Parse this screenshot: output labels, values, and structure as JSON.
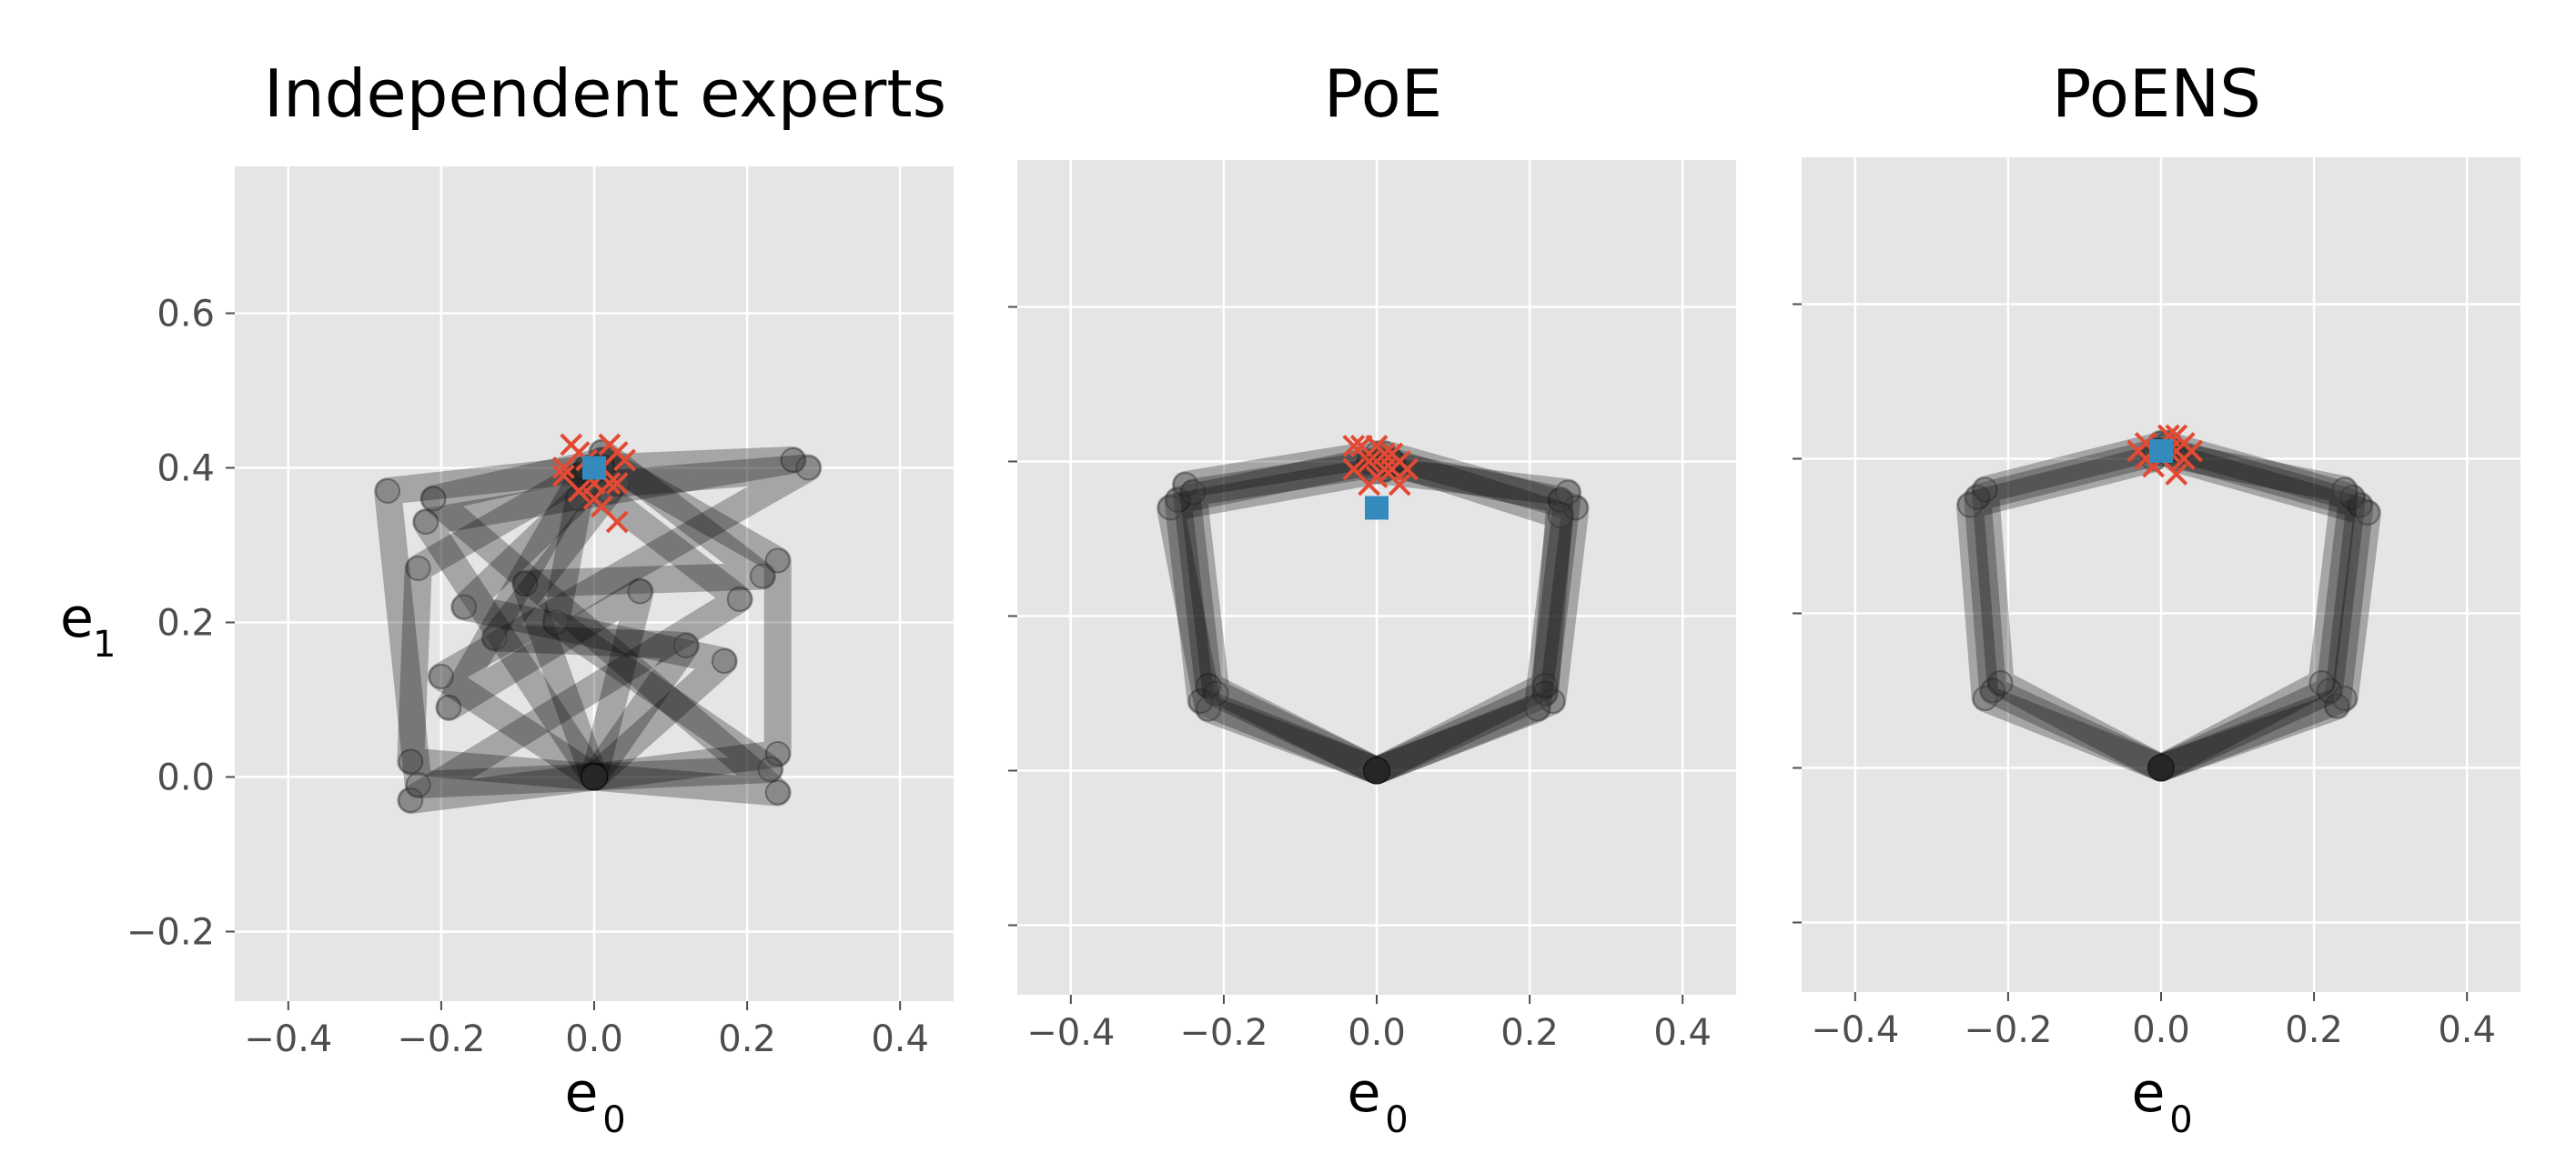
{
  "chart_data": [
    {
      "type": "scatter",
      "title": "Independent experts",
      "xlabel": "e",
      "xlabel_sub": "0",
      "ylabel": "e",
      "ylabel_sub": "1",
      "xlim": [
        -0.47,
        0.47
      ],
      "ylim": [
        -0.29,
        0.79
      ],
      "x_ticks": [
        -0.4,
        -0.2,
        0.0,
        0.2,
        0.4
      ],
      "x_tick_labels": [
        "−0.4",
        "−0.2",
        "0.0",
        "0.2",
        "0.4"
      ],
      "y_ticks": [
        -0.2,
        0.0,
        0.2,
        0.4,
        0.6
      ],
      "y_tick_labels": [
        "−0.2",
        "0.0",
        "0.2",
        "0.4",
        "0.6"
      ],
      "show_y_tick_labels": true,
      "grid": true,
      "arm_color": "#000000",
      "sample_color": "#e24a33",
      "target_color": "#348abd",
      "target": [
        0.0,
        0.4
      ],
      "end_effectors": [
        [
          -0.02,
          0.42
        ],
        [
          0.01,
          0.4
        ],
        [
          0.03,
          0.38
        ],
        [
          -0.04,
          0.39
        ],
        [
          0.02,
          0.43
        ],
        [
          0.0,
          0.36
        ],
        [
          0.03,
          0.33
        ],
        [
          -0.02,
          0.37
        ],
        [
          0.04,
          0.41
        ],
        [
          -0.03,
          0.43
        ],
        [
          0.01,
          0.35
        ],
        [
          0.02,
          0.38
        ],
        [
          -0.01,
          0.41
        ],
        [
          0.03,
          0.42
        ],
        [
          -0.04,
          0.4
        ],
        [
          0.0,
          0.38
        ]
      ],
      "arms": [
        [
          [
            0,
            0
          ],
          [
            -0.24,
            0.02
          ],
          [
            -0.23,
            0.27
          ],
          [
            0.0,
            0.4
          ]
        ],
        [
          [
            0,
            0
          ],
          [
            0.24,
            0.03
          ],
          [
            0.24,
            0.28
          ],
          [
            0.01,
            0.41
          ]
        ],
        [
          [
            0,
            0
          ],
          [
            -0.22,
            0.33
          ],
          [
            0.26,
            0.41
          ],
          [
            0.01,
            0.4
          ]
        ],
        [
          [
            0,
            0
          ],
          [
            0.17,
            0.15
          ],
          [
            -0.17,
            0.22
          ],
          [
            0.0,
            0.38
          ]
        ],
        [
          [
            0,
            0
          ],
          [
            -0.24,
            -0.03
          ],
          [
            0.19,
            0.23
          ],
          [
            -0.02,
            0.39
          ]
        ],
        [
          [
            0,
            0
          ],
          [
            0.24,
            -0.02
          ],
          [
            -0.21,
            0.36
          ],
          [
            0.02,
            0.41
          ]
        ],
        [
          [
            0,
            0
          ],
          [
            -0.09,
            0.25
          ],
          [
            0.22,
            0.26
          ],
          [
            0.01,
            0.42
          ]
        ],
        [
          [
            0,
            0
          ],
          [
            0.06,
            0.24
          ],
          [
            -0.19,
            0.09
          ],
          [
            -0.01,
            0.4
          ]
        ],
        [
          [
            0,
            0
          ],
          [
            -0.2,
            0.13
          ],
          [
            0.28,
            0.4
          ],
          [
            0.03,
            0.38
          ]
        ],
        [
          [
            0,
            0
          ],
          [
            0.23,
            0.01
          ],
          [
            -0.05,
            0.2
          ],
          [
            -0.02,
            0.36
          ]
        ],
        [
          [
            0,
            0
          ],
          [
            -0.23,
            -0.01
          ],
          [
            -0.27,
            0.37
          ],
          [
            0.01,
            0.4
          ]
        ],
        [
          [
            0,
            0
          ],
          [
            0.12,
            0.17
          ],
          [
            -0.13,
            0.18
          ],
          [
            0.02,
            0.37
          ]
        ]
      ]
    },
    {
      "type": "scatter",
      "title": "PoE",
      "xlabel": "e",
      "xlabel_sub": "0",
      "ylabel": "",
      "xlim": [
        -0.47,
        0.47
      ],
      "ylim": [
        -0.29,
        0.79
      ],
      "x_ticks": [
        -0.4,
        -0.2,
        0.0,
        0.2,
        0.4
      ],
      "x_tick_labels": [
        "−0.4",
        "−0.2",
        "0.0",
        "0.2",
        "0.4"
      ],
      "y_ticks": [
        -0.2,
        0.0,
        0.2,
        0.4,
        0.6
      ],
      "y_tick_labels": [
        "",
        "",
        "",
        "",
        ""
      ],
      "show_y_tick_labels": false,
      "grid": true,
      "arm_color": "#000000",
      "sample_color": "#e24a33",
      "target_color": "#348abd",
      "target": [
        0.0,
        0.34
      ],
      "end_effectors": [
        [
          -0.01,
          0.4
        ],
        [
          0.01,
          0.41
        ],
        [
          -0.03,
          0.39
        ],
        [
          0.03,
          0.4
        ],
        [
          0.0,
          0.38
        ],
        [
          -0.02,
          0.42
        ],
        [
          0.02,
          0.39
        ],
        [
          0.03,
          0.37
        ],
        [
          -0.03,
          0.42
        ],
        [
          0.01,
          0.39
        ],
        [
          0.0,
          0.42
        ],
        [
          0.02,
          0.41
        ],
        [
          0.04,
          0.39
        ],
        [
          -0.01,
          0.37
        ]
      ],
      "arms": [
        [
          [
            0,
            0
          ],
          [
            -0.23,
            0.09
          ],
          [
            -0.26,
            0.35
          ],
          [
            -0.01,
            0.4
          ]
        ],
        [
          [
            0,
            0
          ],
          [
            -0.22,
            0.11
          ],
          [
            -0.25,
            0.37
          ],
          [
            0.0,
            0.41
          ]
        ],
        [
          [
            0,
            0
          ],
          [
            -0.21,
            0.1
          ],
          [
            -0.24,
            0.36
          ],
          [
            0.02,
            0.4
          ]
        ],
        [
          [
            0,
            0
          ],
          [
            -0.22,
            0.08
          ],
          [
            -0.27,
            0.34
          ],
          [
            0.01,
            0.39
          ]
        ],
        [
          [
            0,
            0
          ],
          [
            0.22,
            0.1
          ],
          [
            0.24,
            0.35
          ],
          [
            0.0,
            0.4
          ]
        ],
        [
          [
            0,
            0
          ],
          [
            0.23,
            0.09
          ],
          [
            0.26,
            0.34
          ],
          [
            0.01,
            0.41
          ]
        ],
        [
          [
            0,
            0
          ],
          [
            0.22,
            0.11
          ],
          [
            0.25,
            0.36
          ],
          [
            -0.01,
            0.39
          ]
        ],
        [
          [
            0,
            0
          ],
          [
            0.21,
            0.08
          ],
          [
            0.24,
            0.33
          ],
          [
            0.02,
            0.4
          ]
        ]
      ]
    },
    {
      "type": "scatter",
      "title": "PoENS",
      "xlabel": "e",
      "xlabel_sub": "0",
      "ylabel": "",
      "xlim": [
        -0.47,
        0.47
      ],
      "ylim": [
        -0.29,
        0.79
      ],
      "x_ticks": [
        -0.4,
        -0.2,
        0.0,
        0.2,
        0.4
      ],
      "x_tick_labels": [
        "−0.4",
        "−0.2",
        "0.0",
        "0.2",
        "0.4"
      ],
      "y_ticks": [
        -0.2,
        0.0,
        0.2,
        0.4,
        0.6
      ],
      "y_tick_labels": [
        "",
        "",
        "",
        "",
        ""
      ],
      "show_y_tick_labels": false,
      "grid": true,
      "arm_color": "#000000",
      "sample_color": "#e24a33",
      "target_color": "#348abd",
      "target": [
        0.0,
        0.41
      ],
      "end_effectors": [
        [
          -0.02,
          0.42
        ],
        [
          0.01,
          0.41
        ],
        [
          0.03,
          0.4
        ],
        [
          -0.01,
          0.39
        ],
        [
          0.02,
          0.43
        ],
        [
          0.04,
          0.41
        ],
        [
          -0.03,
          0.41
        ],
        [
          0.0,
          0.4
        ],
        [
          0.02,
          0.38
        ],
        [
          0.03,
          0.42
        ],
        [
          -0.02,
          0.4
        ],
        [
          0.01,
          0.43
        ]
      ],
      "arms": [
        [
          [
            0,
            0
          ],
          [
            -0.22,
            0.1
          ],
          [
            -0.24,
            0.35
          ],
          [
            0.0,
            0.41
          ]
        ],
        [
          [
            0,
            0
          ],
          [
            -0.21,
            0.11
          ],
          [
            -0.23,
            0.36
          ],
          [
            0.01,
            0.42
          ]
        ],
        [
          [
            0,
            0
          ],
          [
            -0.23,
            0.09
          ],
          [
            -0.25,
            0.34
          ],
          [
            -0.01,
            0.4
          ]
        ],
        [
          [
            0,
            0
          ],
          [
            0.23,
            0.08
          ],
          [
            0.26,
            0.34
          ],
          [
            0.01,
            0.41
          ]
        ],
        [
          [
            0,
            0
          ],
          [
            0.22,
            0.1
          ],
          [
            0.25,
            0.35
          ],
          [
            0.0,
            0.42
          ]
        ],
        [
          [
            0,
            0
          ],
          [
            0.24,
            0.09
          ],
          [
            0.27,
            0.33
          ],
          [
            0.02,
            0.4
          ]
        ],
        [
          [
            0,
            0
          ],
          [
            0.21,
            0.11
          ],
          [
            0.24,
            0.36
          ],
          [
            -0.01,
            0.41
          ]
        ]
      ]
    }
  ]
}
